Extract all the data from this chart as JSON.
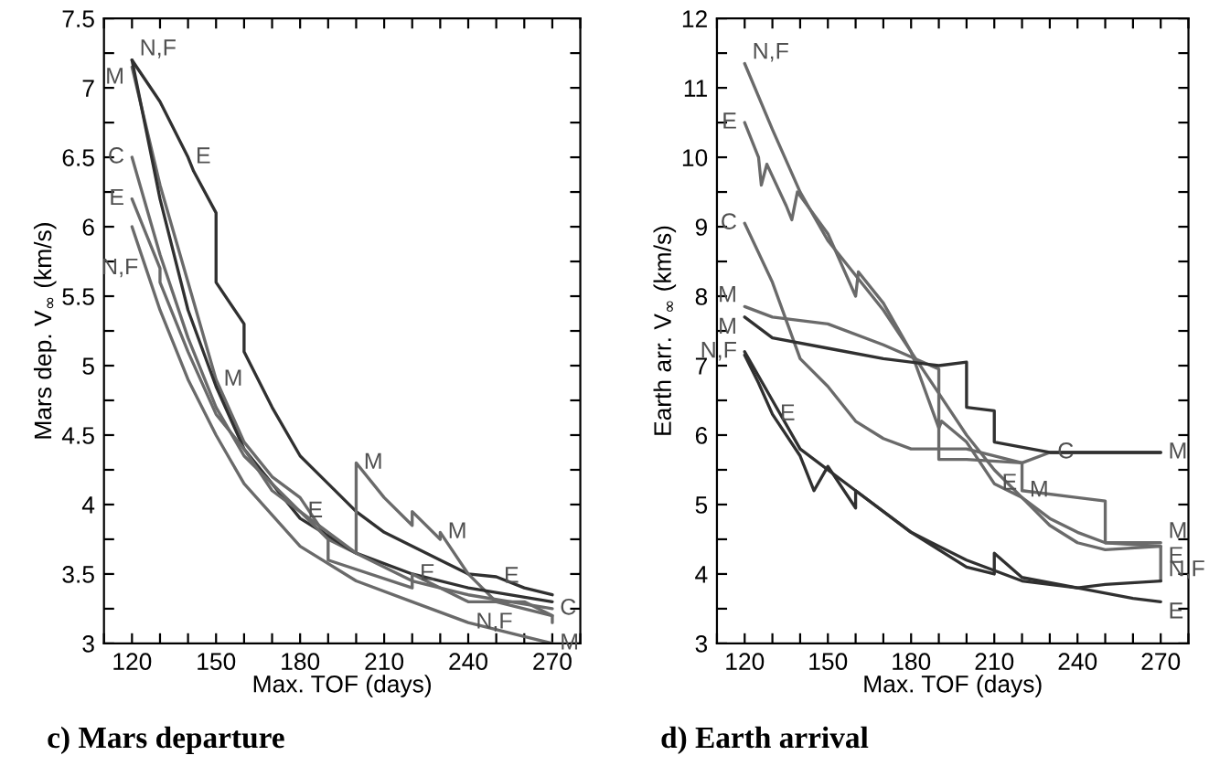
{
  "chart_data": [
    {
      "type": "line",
      "title": "c) Mars departure",
      "xlabel": "Max. TOF (days)",
      "ylabel": "Mars dep. V$_{∞}$ (km/s)",
      "xlim": [
        110,
        280
      ],
      "ylim": [
        3,
        7.5
      ],
      "xticks": [
        {
          "value": 110,
          "label": null
        },
        120,
        {
          "value": 130,
          "label": null
        },
        {
          "value": 140,
          "label": null
        },
        150,
        {
          "value": 160,
          "label": null
        },
        {
          "value": 170,
          "label": null
        },
        180,
        {
          "value": 190,
          "label": null
        },
        {
          "value": 200,
          "label": null
        },
        210,
        {
          "value": 220,
          "label": null
        },
        {
          "value": 230,
          "label": null
        },
        240,
        {
          "value": 250,
          "label": null
        },
        {
          "value": 260,
          "label": null
        },
        270,
        {
          "value": 280,
          "label": null
        }
      ],
      "yticks": [
        3,
        {
          "value": 3.25,
          "label": null
        },
        3.5,
        {
          "value": 3.75,
          "label": null
        },
        4,
        {
          "value": 4.25,
          "label": null
        },
        4.5,
        {
          "value": 4.75,
          "label": null
        },
        5,
        {
          "value": 5.25,
          "label": null
        },
        5.5,
        {
          "value": 5.75,
          "label": null
        },
        6,
        {
          "value": 6.25,
          "label": null
        },
        6.5,
        {
          "value": 6.75,
          "label": null
        },
        7,
        {
          "value": 7.25,
          "label": null
        },
        7.5
      ],
      "grid": false,
      "legend": false,
      "marker": "none",
      "line_style": "solid",
      "series": [
        {
          "color": "#303030",
          "x": [
            120,
            130,
            140,
            142,
            150,
            150,
            160,
            160,
            170,
            180,
            190,
            200,
            210,
            220,
            230,
            240,
            250,
            260,
            270
          ],
          "values": [
            7.2,
            6.9,
            6.5,
            6.4,
            6.1,
            5.6,
            5.3,
            5.1,
            4.7,
            4.35,
            4.15,
            3.95,
            3.8,
            3.7,
            3.6,
            3.5,
            3.48,
            3.4,
            3.35
          ]
        },
        {
          "color": "#6a6a6a",
          "x": [
            120,
            130,
            140,
            150,
            160,
            170,
            180,
            190,
            200,
            200,
            210,
            220,
            220,
            230,
            230,
            240,
            250,
            270,
            270
          ],
          "values": [
            7.15,
            6.3,
            5.6,
            4.9,
            4.45,
            4.2,
            4.05,
            3.75,
            3.65,
            4.3,
            4.05,
            3.85,
            3.95,
            3.75,
            3.8,
            3.5,
            3.3,
            3.2,
            3.15
          ]
        },
        {
          "color": "#303030",
          "x": [
            120,
            130,
            140,
            150,
            160,
            180,
            200,
            220,
            240,
            270
          ],
          "values": [
            7.2,
            6.2,
            5.4,
            4.85,
            4.4,
            3.9,
            3.65,
            3.5,
            3.4,
            3.3
          ]
        },
        {
          "color": "#6a6a6a",
          "x": [
            120,
            130,
            140,
            150,
            160,
            180,
            200,
            220,
            240,
            270
          ],
          "values": [
            6.5,
            5.8,
            5.2,
            4.7,
            4.35,
            3.95,
            3.65,
            3.45,
            3.35,
            3.25
          ]
        },
        {
          "color": "#6a6a6a",
          "x": [
            120,
            130,
            130,
            140,
            150,
            160,
            170,
            180,
            190,
            190,
            220,
            220,
            240,
            260,
            270
          ],
          "values": [
            6.2,
            5.7,
            5.6,
            5.1,
            4.65,
            4.4,
            4.1,
            3.95,
            3.75,
            3.6,
            3.4,
            3.5,
            3.3,
            3.3,
            3.2
          ]
        },
        {
          "color": "#6a6a6a",
          "x": [
            120,
            125,
            130,
            140,
            150,
            160,
            180,
            200,
            220,
            240,
            260,
            270
          ],
          "values": [
            6.0,
            5.7,
            5.4,
            4.9,
            4.5,
            4.15,
            3.7,
            3.45,
            3.3,
            3.15,
            3.05,
            3.0
          ]
        }
      ],
      "annotations": [
        {
          "text": "M",
          "x": 120,
          "y": 7.15
        },
        {
          "text": "N,F",
          "x": 120,
          "y": 7.2
        },
        {
          "text": "E",
          "x": 140,
          "y": 6.5
        },
        {
          "text": "C",
          "x": 120,
          "y": 6.5
        },
        {
          "text": "E",
          "x": 120,
          "y": 6.2
        },
        {
          "text": "N,F",
          "x": 125,
          "y": 5.7
        },
        {
          "text": "M",
          "x": 150,
          "y": 4.9
        },
        {
          "text": "M",
          "x": 200,
          "y": 4.3
        },
        {
          "text": "E",
          "x": 180,
          "y": 3.95
        },
        {
          "text": "M",
          "x": 230,
          "y": 3.8
        },
        {
          "text": "E",
          "x": 250,
          "y": 3.48
        },
        {
          "text": "E",
          "x": 220,
          "y": 3.5
        },
        {
          "text": "N,F",
          "x": 240,
          "y": 3.15
        },
        {
          "text": "C",
          "x": 270,
          "y": 3.25
        },
        {
          "text": "M",
          "x": 270,
          "y": 3.0
        }
      ]
    },
    {
      "type": "line",
      "title": "d) Earth arrival",
      "xlabel": "Max. TOF (days)",
      "ylabel": "Earth arr. V$_{∞}$ (km/s)",
      "xlim": [
        110,
        280
      ],
      "ylim": [
        3,
        12
      ],
      "xticks": [
        {
          "value": 110,
          "label": null
        },
        120,
        {
          "value": 130,
          "label": null
        },
        {
          "value": 140,
          "label": null
        },
        150,
        {
          "value": 160,
          "label": null
        },
        {
          "value": 170,
          "label": null
        },
        180,
        {
          "value": 190,
          "label": null
        },
        {
          "value": 200,
          "label": null
        },
        210,
        {
          "value": 220,
          "label": null
        },
        {
          "value": 230,
          "label": null
        },
        240,
        {
          "value": 250,
          "label": null
        },
        {
          "value": 260,
          "label": null
        },
        270,
        {
          "value": 280,
          "label": null
        }
      ],
      "yticks": [
        3,
        {
          "value": 3.5,
          "label": null
        },
        4,
        {
          "value": 4.5,
          "label": null
        },
        5,
        {
          "value": 5.5,
          "label": null
        },
        6,
        {
          "value": 6.5,
          "label": null
        },
        7,
        {
          "value": 7.5,
          "label": null
        },
        8,
        {
          "value": 8.5,
          "label": null
        },
        9,
        {
          "value": 9.5,
          "label": null
        },
        10,
        {
          "value": 10.5,
          "label": null
        },
        11,
        {
          "value": 11.5,
          "label": null
        },
        12
      ],
      "grid": false,
      "legend": false,
      "marker": "none",
      "line_style": "solid",
      "series": [
        {
          "color": "#6a6a6a",
          "x": [
            120,
            130,
            140,
            150,
            160,
            170,
            180,
            190,
            200,
            210,
            220,
            230,
            240,
            250,
            270,
            270
          ],
          "values": [
            11.35,
            10.4,
            9.5,
            8.8,
            8.3,
            7.8,
            7.2,
            6.6,
            6.0,
            5.5,
            5.1,
            4.8,
            4.6,
            4.45,
            4.4,
            3.9
          ]
        },
        {
          "color": "#6a6a6a",
          "x": [
            120,
            125,
            126,
            128,
            135,
            137,
            139,
            150,
            160,
            161,
            170,
            180,
            190,
            191,
            200,
            210,
            220,
            230,
            240,
            250,
            270
          ],
          "values": [
            10.5,
            10.0,
            9.6,
            9.9,
            9.3,
            9.1,
            9.5,
            8.9,
            8.0,
            8.35,
            7.9,
            7.2,
            6.1,
            6.2,
            5.9,
            5.3,
            5.1,
            4.7,
            4.45,
            4.35,
            4.4
          ]
        },
        {
          "color": "#6a6a6a",
          "x": [
            120,
            130,
            140,
            150,
            160,
            170,
            180,
            200,
            220,
            230,
            270
          ],
          "values": [
            9.05,
            8.2,
            7.1,
            6.7,
            6.2,
            5.95,
            5.8,
            5.8,
            5.6,
            5.75,
            5.75
          ]
        },
        {
          "color": "#6a6a6a",
          "x": [
            120,
            130,
            150,
            170,
            190,
            190,
            200,
            220,
            220,
            240,
            250,
            250,
            270
          ],
          "values": [
            7.85,
            7.7,
            7.6,
            7.3,
            6.95,
            5.65,
            5.65,
            5.6,
            5.2,
            5.1,
            5.05,
            4.45,
            4.45
          ]
        },
        {
          "color": "#303030",
          "x": [
            120,
            130,
            150,
            170,
            190,
            200,
            200,
            210,
            210,
            230,
            270
          ],
          "values": [
            7.7,
            7.4,
            7.25,
            7.1,
            7.0,
            7.05,
            6.4,
            6.35,
            5.9,
            5.75,
            5.75
          ]
        },
        {
          "color": "#303030",
          "x": [
            120,
            125,
            130,
            140,
            145,
            150,
            160,
            160,
            180,
            200,
            210,
            210,
            220,
            240,
            260,
            270
          ],
          "values": [
            7.15,
            6.75,
            6.3,
            5.7,
            5.2,
            5.55,
            4.95,
            5.2,
            4.6,
            4.1,
            4.0,
            4.3,
            3.95,
            3.8,
            3.65,
            3.6
          ]
        },
        {
          "color": "#303030",
          "x": [
            120,
            130,
            140,
            160,
            180,
            200,
            220,
            240,
            250,
            270
          ],
          "values": [
            7.2,
            6.5,
            5.8,
            5.2,
            4.6,
            4.2,
            3.9,
            3.8,
            3.85,
            3.9
          ]
        }
      ],
      "annotations": [
        {
          "text": "N,F",
          "x": 120,
          "y": 11.35
        },
        {
          "text": "E",
          "x": 120,
          "y": 10.5
        },
        {
          "text": "C",
          "x": 120,
          "y": 9.05
        },
        {
          "text": "M",
          "x": 120,
          "y": 7.85
        },
        {
          "text": "M",
          "x": 120,
          "y": 7.7
        },
        {
          "text": "E",
          "x": 130,
          "y": 6.3
        },
        {
          "text": "N,F",
          "x": 120,
          "y": 7.2
        },
        {
          "text": "C",
          "x": 230,
          "y": 5.75
        },
        {
          "text": "M",
          "x": 270,
          "y": 5.75
        },
        {
          "text": "M",
          "x": 220,
          "y": 5.2
        },
        {
          "text": "E",
          "x": 210,
          "y": 5.3
        },
        {
          "text": "M",
          "x": 270,
          "y": 4.45
        },
        {
          "text": "E",
          "x": 270,
          "y": 4.4
        },
        {
          "text": "N,F",
          "x": 270,
          "y": 3.9
        },
        {
          "text": "E",
          "x": 270,
          "y": 3.6
        }
      ]
    }
  ]
}
